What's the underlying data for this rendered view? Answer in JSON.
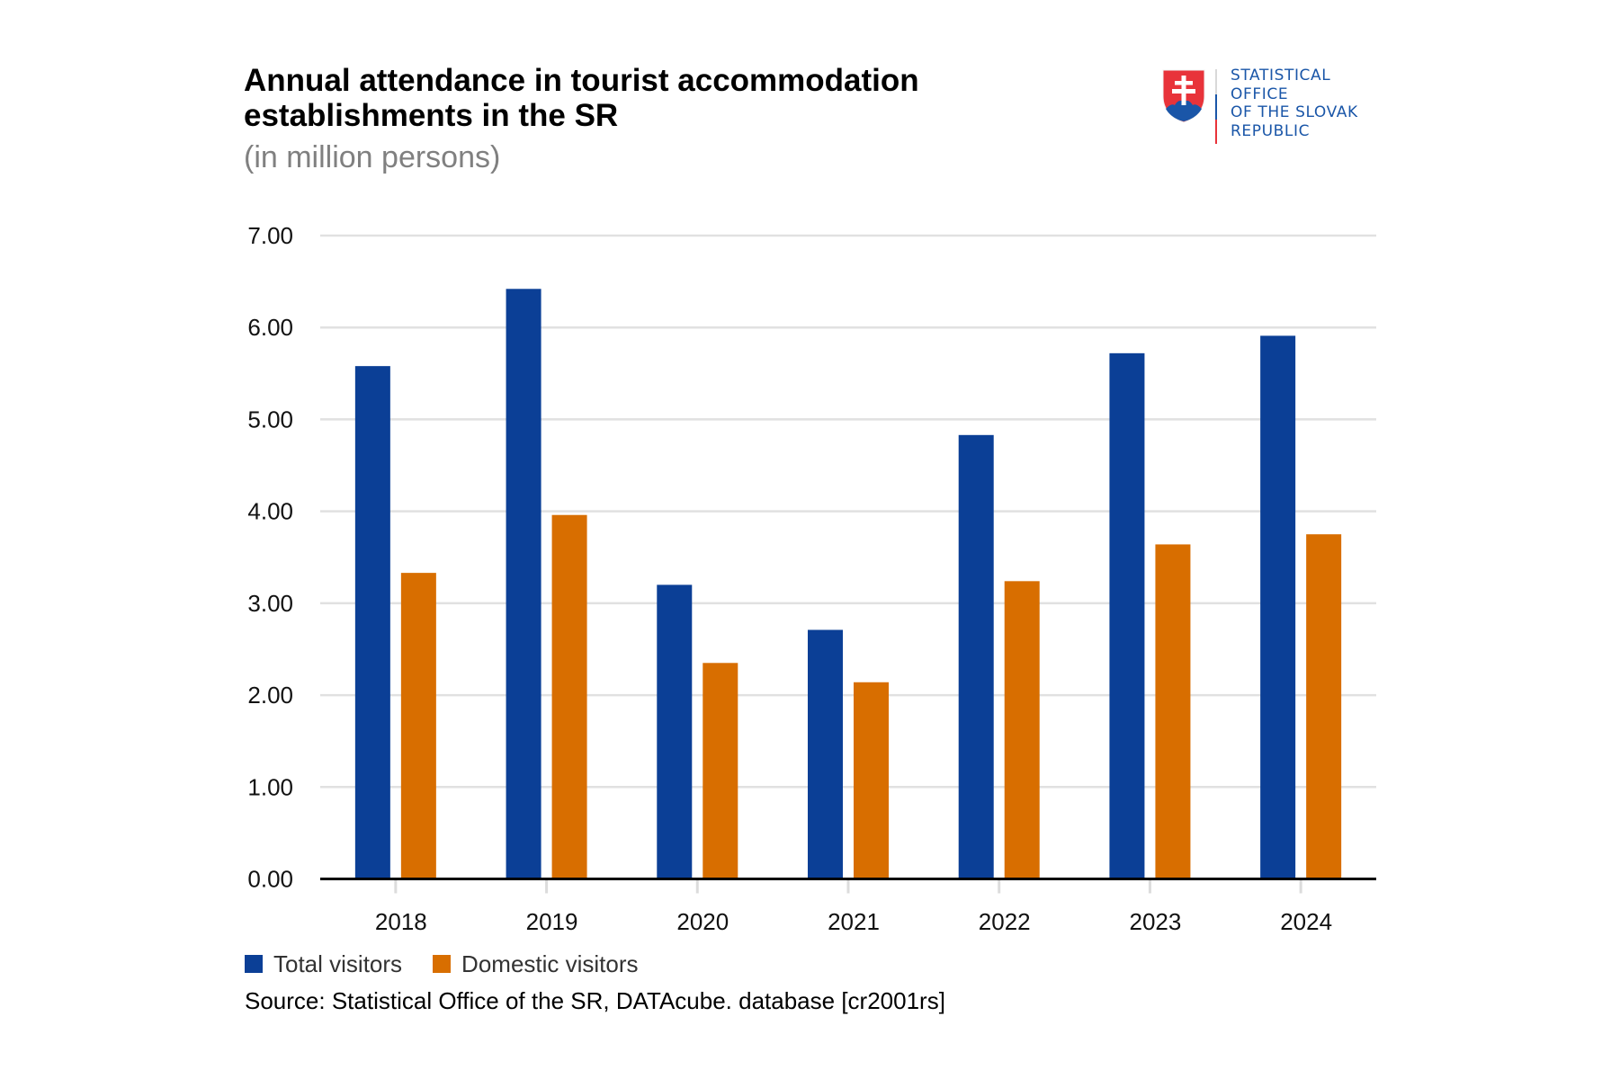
{
  "header": {
    "title_line1": "Annual attendance in tourist accommodation",
    "title_line2": "establishments in the SR",
    "subtitle": "(in million persons)"
  },
  "logo": {
    "icon": "slovak-coat-of-arms-icon",
    "lines": [
      "STATISTICAL",
      "OFFICE",
      "OF THE SLOVAK",
      "REPUBLIC"
    ],
    "colors": {
      "text": "#1a56a8",
      "shield_red": "#e8333a",
      "shield_blue": "#1a56a8",
      "cross": "#ffffff"
    }
  },
  "source": "Source: Statistical Office of the SR, DATAcube. database [cr2001rs]",
  "chart_data": {
    "type": "bar",
    "title": "Annual attendance in tourist accommodation establishments in the SR",
    "subtitle": "(in million persons)",
    "xlabel": "",
    "ylabel": "",
    "categories": [
      "2018",
      "2019",
      "2020",
      "2021",
      "2022",
      "2023",
      "2024"
    ],
    "series": [
      {
        "name": "Total visitors",
        "color": "#0b3f96",
        "values": [
          5.58,
          6.42,
          3.2,
          2.71,
          4.83,
          5.72,
          5.91
        ]
      },
      {
        "name": "Domestic visitors",
        "color": "#d86e00",
        "values": [
          3.33,
          3.96,
          2.35,
          2.14,
          3.24,
          3.64,
          3.75
        ]
      }
    ],
    "ylim": [
      0,
      7
    ],
    "yticks": [
      0,
      1,
      2,
      3,
      4,
      5,
      6,
      7
    ],
    "ytick_labels": [
      "0.00",
      "1.00",
      "2.00",
      "3.00",
      "4.00",
      "5.00",
      "6.00",
      "7.00"
    ],
    "grid": true,
    "legend_position": "bottom-left"
  }
}
